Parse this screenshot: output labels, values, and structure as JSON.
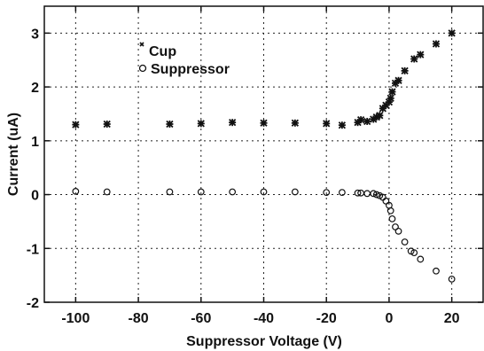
{
  "chart_data": {
    "type": "scatter",
    "title": "",
    "xlabel": "Suppressor Voltage (V)",
    "ylabel": "Current (uA)",
    "xlim": [
      -110,
      30
    ],
    "ylim": [
      -2,
      3.5
    ],
    "xticks": [
      -100,
      -80,
      -60,
      -40,
      -20,
      0,
      20
    ],
    "yticks": [
      -2,
      -1,
      0,
      1,
      2,
      3
    ],
    "grid": true,
    "legend_position": "top-left",
    "series": [
      {
        "name": "Cup",
        "marker": "*",
        "color": "#111111",
        "x": [
          -100,
          -90,
          -70,
          -60,
          -50,
          -40,
          -30,
          -20,
          -15,
          -10,
          -9,
          -7,
          -5,
          -4,
          -3,
          -2,
          -1,
          0,
          0.5,
          1,
          2,
          3,
          5,
          8,
          10,
          15,
          20
        ],
        "y": [
          1.3,
          1.31,
          1.31,
          1.32,
          1.34,
          1.33,
          1.33,
          1.32,
          1.29,
          1.34,
          1.39,
          1.36,
          1.4,
          1.44,
          1.47,
          1.6,
          1.66,
          1.72,
          1.79,
          1.91,
          2.07,
          2.12,
          2.3,
          2.52,
          2.6,
          2.8,
          3.0
        ]
      },
      {
        "name": "Suppressor",
        "marker": "o",
        "color": "#111111",
        "x": [
          -100,
          -90,
          -70,
          -60,
          -50,
          -40,
          -30,
          -20,
          -15,
          -10,
          -9,
          -7,
          -5,
          -4,
          -3,
          -2,
          -1,
          0,
          0.5,
          1,
          2,
          3,
          5,
          7,
          8,
          10,
          15,
          20
        ],
        "y": [
          0.06,
          0.05,
          0.05,
          0.05,
          0.05,
          0.05,
          0.05,
          0.04,
          0.04,
          0.03,
          0.03,
          0.02,
          0.02,
          0.0,
          -0.02,
          -0.05,
          -0.12,
          -0.2,
          -0.3,
          -0.45,
          -0.6,
          -0.68,
          -0.88,
          -1.05,
          -1.08,
          -1.2,
          -1.42,
          -1.57
        ]
      }
    ]
  }
}
